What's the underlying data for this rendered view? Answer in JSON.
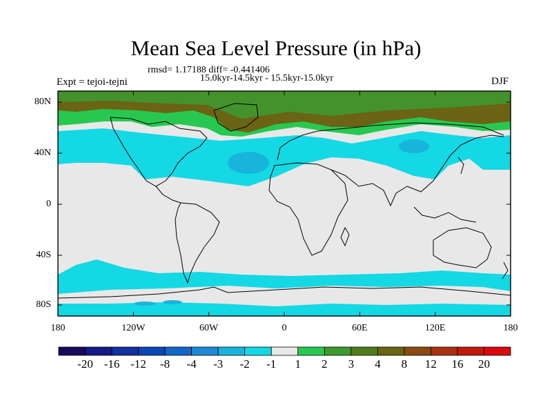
{
  "title": "Mean Sea Level Pressure (in hPa)",
  "stats_line": "rmsd= 1.17188  diff= -0.441406",
  "period_line": "15.0kyr-14.5kyr - 15.5kyr-15.0kyr",
  "expt_label": "Expt = tejoi-tejni",
  "season_label": "DJF",
  "lat_ticks": [
    "80N",
    "40N",
    "0",
    "40S",
    "80S"
  ],
  "lon_ticks": [
    "180",
    "120W",
    "60W",
    "0",
    "60E",
    "120E",
    "180"
  ],
  "colorbar": {
    "labels": [
      "-20",
      "-16",
      "-12",
      "-8",
      "-4",
      "-3",
      "-2",
      "-1",
      "1",
      "2",
      "3",
      "4",
      "8",
      "12",
      "16",
      "20"
    ],
    "colors": [
      "#1a0a5c",
      "#151a86",
      "#1232a0",
      "#0c46b4",
      "#1466c8",
      "#1e88d4",
      "#18b4dc",
      "#14d8e4",
      "#e8e8e8",
      "#28c850",
      "#3c9a30",
      "#507c1e",
      "#6a6414",
      "#8a4a10",
      "#aa3010",
      "#c01a0c",
      "#d80a0a"
    ]
  },
  "colors": {
    "background_neutral": "#e8e8e8",
    "negative_small": "#14d8e4",
    "negative_medium": "#18b4dc",
    "positive_small": "#28c850",
    "positive_medium": "#3c9a30",
    "positive_large": "#6a6414"
  }
}
